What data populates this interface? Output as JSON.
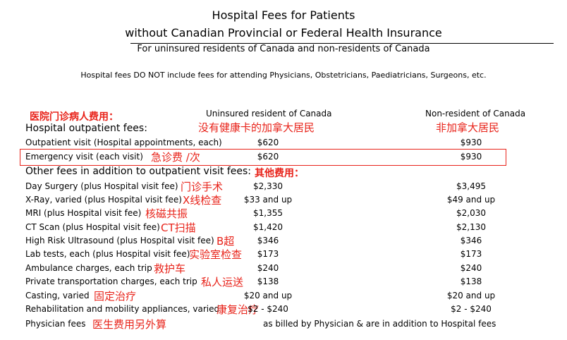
{
  "header": {
    "title_line1": "Hospital Fees for Patients",
    "title_line2": "without Canadian Provincial or Federal Health Insurance",
    "subtitle": "For uninsured residents of Canada and non-residents of Canada",
    "note": "Hospital fees DO NOT include fees for attending Physicians, Obstetricians, Paediatricians, Surgeons, etc."
  },
  "columns": {
    "uninsured": "Uninsured resident of Canada",
    "nonresident": "Non-resident of Canada",
    "uninsured_cn": "没有健康卡的加拿大居民",
    "nonresident_cn": "非加拿大居民"
  },
  "outpatient": {
    "cn_label": "医院门诊病人费用：",
    "heading": "Hospital outpatient fees:",
    "rows": [
      {
        "label": "Outpatient visit (Hospital appointments, each)",
        "cn": "",
        "uninsured": "$620",
        "nonresident": "$930"
      },
      {
        "label": "Emergency visit (each visit)",
        "cn": "急诊费 /次",
        "uninsured": "$620",
        "nonresident": "$930"
      }
    ]
  },
  "other": {
    "heading": "Other fees in addition to outpatient visit fees:",
    "cn_label": "其他费用：",
    "rows": [
      {
        "label": "Day Surgery (plus Hospital visit fee)",
        "cn": "门诊手术",
        "uninsured": "$2,330",
        "nonresident": "$3,495"
      },
      {
        "label": "X-Ray, varied (plus Hospital visit fee)",
        "cn": "X线检查",
        "uninsured": "$33 and up",
        "nonresident": "$49 and up"
      },
      {
        "label": "MRI (plus Hospital visit fee)",
        "cn": "核磁共振",
        "uninsured": "$1,355",
        "nonresident": "$2,030"
      },
      {
        "label": "CT Scan (plus Hospital visit fee)",
        "cn": "CT扫描",
        "uninsured": "$1,420",
        "nonresident": "$2,130"
      },
      {
        "label": "High Risk Ultrasound (plus Hospital visit fee)",
        "cn": "B超",
        "uninsured": "$346",
        "nonresident": "$346"
      },
      {
        "label": "Lab tests, each (plus Hospital visit fee)",
        "cn": "实验室检查",
        "uninsured": "$173",
        "nonresident": "$173"
      },
      {
        "label": "Ambulance charges, each trip",
        "cn": "救护车",
        "uninsured": "$240",
        "nonresident": "$240"
      },
      {
        "label": "Private transportation charges, each trip",
        "cn": "私人运送",
        "uninsured": "$138",
        "nonresident": "$138"
      },
      {
        "label": "Casting, varied",
        "cn": "固定治疗",
        "uninsured": "$20 and up",
        "nonresident": "$20 and up"
      },
      {
        "label": "Rehabilitation and mobility appliances, varied",
        "cn": "康复治疗",
        "uninsured": "$2 - $240",
        "nonresident": "$2 - $240"
      }
    ],
    "physician": {
      "label": "Physician fees",
      "cn": "医生费用另外算",
      "note": "as billed by Physician & are in addition to Hospital fees"
    }
  }
}
